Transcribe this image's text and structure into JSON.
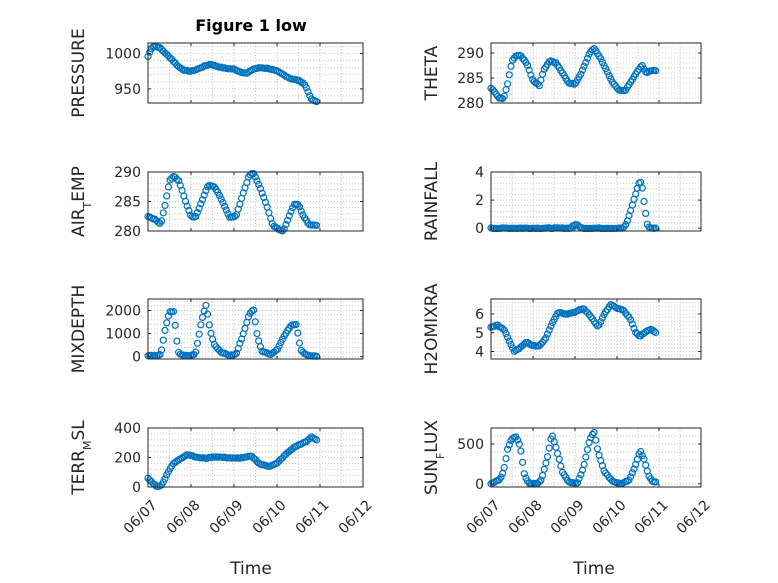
{
  "figure": {
    "title": "Figure 1 low",
    "xlabel": "Time",
    "x_ticks": [
      "06/07",
      "06/08",
      "06/09",
      "06/10",
      "06/11",
      "06/12"
    ]
  },
  "colors": {
    "marker": "#0072BD",
    "grid": "#bdbdbd",
    "axis": "#262626"
  },
  "chart_data": [
    {
      "type": "scatter",
      "title": "Figure 1 low",
      "ylabel_parts": [
        {
          "t": "PRESSURE"
        }
      ],
      "xlim": [
        "06/07",
        "06/12"
      ],
      "x_tick_labels": [],
      "ylim": [
        930,
        1015
      ],
      "yticks": [
        950,
        1000
      ],
      "grid": true,
      "marker": "o",
      "x_samples": [
        "06/07 00:00",
        "06/08 00:00",
        "06/09 00:00",
        "06/10 00:00",
        "06/10 22:00"
      ],
      "keypoints": [
        [
          0.0,
          996
        ],
        [
          0.03,
          1000
        ],
        [
          0.06,
          1006
        ],
        [
          0.12,
          1010
        ],
        [
          0.2,
          1010
        ],
        [
          0.28,
          1008
        ],
        [
          0.38,
          1002
        ],
        [
          0.55,
          992
        ],
        [
          0.7,
          982
        ],
        [
          0.85,
          976
        ],
        [
          1.0,
          975
        ],
        [
          1.15,
          978
        ],
        [
          1.3,
          982
        ],
        [
          1.45,
          985
        ],
        [
          1.6,
          982
        ],
        [
          1.8,
          979
        ],
        [
          2.0,
          978
        ],
        [
          2.15,
          974
        ],
        [
          2.3,
          972
        ],
        [
          2.45,
          978
        ],
        [
          2.6,
          980
        ],
        [
          2.8,
          979
        ],
        [
          3.0,
          975
        ],
        [
          3.15,
          970
        ],
        [
          3.3,
          965
        ],
        [
          3.5,
          962
        ],
        [
          3.62,
          958
        ],
        [
          3.7,
          950
        ],
        [
          3.76,
          940
        ],
        [
          3.82,
          934
        ],
        [
          3.92,
          932
        ]
      ]
    },
    {
      "type": "scatter",
      "ylabel_parts": [
        {
          "t": "THETA"
        }
      ],
      "xlim": [
        "06/07",
        "06/12"
      ],
      "x_tick_labels": [],
      "ylim": [
        280,
        292
      ],
      "yticks": [
        280,
        285,
        290
      ],
      "grid": true,
      "marker": "o",
      "keypoints": [
        [
          0.0,
          283.0
        ],
        [
          0.1,
          282.0
        ],
        [
          0.2,
          281.0
        ],
        [
          0.3,
          280.8
        ],
        [
          0.4,
          284.0
        ],
        [
          0.5,
          288.5
        ],
        [
          0.6,
          289.5
        ],
        [
          0.7,
          289.5
        ],
        [
          0.85,
          288.0
        ],
        [
          1.0,
          284.5
        ],
        [
          1.15,
          283.5
        ],
        [
          1.25,
          286.5
        ],
        [
          1.4,
          288.5
        ],
        [
          1.55,
          288.0
        ],
        [
          1.7,
          286.0
        ],
        [
          1.85,
          284.0
        ],
        [
          2.0,
          283.8
        ],
        [
          2.15,
          286.0
        ],
        [
          2.35,
          290.0
        ],
        [
          2.45,
          291.0
        ],
        [
          2.6,
          289.0
        ],
        [
          2.75,
          286.5
        ],
        [
          2.9,
          284.0
        ],
        [
          3.05,
          282.5
        ],
        [
          3.2,
          282.5
        ],
        [
          3.35,
          284.5
        ],
        [
          3.5,
          286.5
        ],
        [
          3.6,
          287.5
        ],
        [
          3.7,
          286.0
        ],
        [
          3.82,
          286.5
        ],
        [
          3.92,
          286.5
        ]
      ]
    },
    {
      "type": "scatter",
      "ylabel_parts": [
        {
          "t": "AIR"
        },
        {
          "t": "T",
          "sub": true
        },
        {
          "t": "EMP"
        }
      ],
      "xlim": [
        "06/07",
        "06/12"
      ],
      "x_tick_labels": [],
      "ylim": [
        280,
        290
      ],
      "yticks": [
        280,
        285,
        290
      ],
      "grid": true,
      "marker": "o",
      "keypoints": [
        [
          0.0,
          282.5
        ],
        [
          0.15,
          282.0
        ],
        [
          0.3,
          281.2
        ],
        [
          0.4,
          284.5
        ],
        [
          0.5,
          288.5
        ],
        [
          0.6,
          289.3
        ],
        [
          0.72,
          288.5
        ],
        [
          0.85,
          285.5
        ],
        [
          1.0,
          282.5
        ],
        [
          1.1,
          282.3
        ],
        [
          1.25,
          285.0
        ],
        [
          1.4,
          287.8
        ],
        [
          1.55,
          287.5
        ],
        [
          1.7,
          285.5
        ],
        [
          1.9,
          282.3
        ],
        [
          2.05,
          282.5
        ],
        [
          2.2,
          286.0
        ],
        [
          2.35,
          289.5
        ],
        [
          2.45,
          289.8
        ],
        [
          2.6,
          287.5
        ],
        [
          2.75,
          284.5
        ],
        [
          2.9,
          281.0
        ],
        [
          3.05,
          280.2
        ],
        [
          3.15,
          280.0
        ],
        [
          3.28,
          282.5
        ],
        [
          3.4,
          284.5
        ],
        [
          3.5,
          284.5
        ],
        [
          3.62,
          282.5
        ],
        [
          3.75,
          281.0
        ],
        [
          3.92,
          281.0
        ]
      ]
    },
    {
      "type": "scatter",
      "ylabel_parts": [
        {
          "t": "RAINFALL"
        }
      ],
      "xlim": [
        "06/07",
        "06/12"
      ],
      "x_tick_labels": [],
      "ylim": [
        -0.2,
        4
      ],
      "yticks": [
        0,
        2,
        4
      ],
      "grid": true,
      "marker": "o",
      "keypoints": [
        [
          0.0,
          0
        ],
        [
          1.9,
          0
        ],
        [
          1.95,
          0.2
        ],
        [
          2.05,
          0.25
        ],
        [
          2.15,
          0
        ],
        [
          3.15,
          0
        ],
        [
          3.22,
          0.3
        ],
        [
          3.3,
          1.0
        ],
        [
          3.38,
          1.8
        ],
        [
          3.45,
          2.5
        ],
        [
          3.52,
          3.2
        ],
        [
          3.58,
          3.3
        ],
        [
          3.62,
          2.5
        ],
        [
          3.66,
          1.5
        ],
        [
          3.72,
          0.3
        ],
        [
          3.78,
          0
        ],
        [
          3.92,
          0
        ]
      ]
    },
    {
      "type": "scatter",
      "ylabel_parts": [
        {
          "t": "MIXDEPTH"
        }
      ],
      "xlim": [
        "06/07",
        "06/12"
      ],
      "x_tick_labels": [],
      "ylim": [
        -100,
        2500
      ],
      "yticks": [
        0,
        1000,
        2000
      ],
      "grid": true,
      "marker": "o",
      "keypoints": [
        [
          0.0,
          50
        ],
        [
          0.2,
          60
        ],
        [
          0.3,
          100
        ],
        [
          0.4,
          1200
        ],
        [
          0.5,
          1950
        ],
        [
          0.6,
          1950
        ],
        [
          0.7,
          200
        ],
        [
          0.8,
          50
        ],
        [
          1.0,
          50
        ],
        [
          1.1,
          100
        ],
        [
          1.25,
          1600
        ],
        [
          1.35,
          2250
        ],
        [
          1.45,
          1100
        ],
        [
          1.55,
          500
        ],
        [
          1.7,
          200
        ],
        [
          1.9,
          50
        ],
        [
          2.05,
          100
        ],
        [
          2.2,
          900
        ],
        [
          2.35,
          1800
        ],
        [
          2.45,
          2100
        ],
        [
          2.55,
          800
        ],
        [
          2.65,
          250
        ],
        [
          2.85,
          100
        ],
        [
          3.0,
          300
        ],
        [
          3.2,
          1000
        ],
        [
          3.35,
          1400
        ],
        [
          3.45,
          1400
        ],
        [
          3.55,
          300
        ],
        [
          3.65,
          100
        ],
        [
          3.8,
          30
        ],
        [
          3.92,
          20
        ]
      ]
    },
    {
      "type": "scatter",
      "ylabel_parts": [
        {
          "t": "H2OMIXRA"
        }
      ],
      "xlim": [
        "06/07",
        "06/12"
      ],
      "x_tick_labels": [],
      "ylim": [
        3.6,
        6.8
      ],
      "yticks": [
        4,
        5,
        6
      ],
      "grid": true,
      "marker": "o",
      "keypoints": [
        [
          0.0,
          5.3
        ],
        [
          0.15,
          5.4
        ],
        [
          0.3,
          5.2
        ],
        [
          0.45,
          4.5
        ],
        [
          0.55,
          4.0
        ],
        [
          0.7,
          4.2
        ],
        [
          0.85,
          4.5
        ],
        [
          1.0,
          4.3
        ],
        [
          1.15,
          4.3
        ],
        [
          1.3,
          4.7
        ],
        [
          1.45,
          5.5
        ],
        [
          1.6,
          6.1
        ],
        [
          1.8,
          6.0
        ],
        [
          2.0,
          6.1
        ],
        [
          2.2,
          6.3
        ],
        [
          2.4,
          5.8
        ],
        [
          2.55,
          5.3
        ],
        [
          2.7,
          6.0
        ],
        [
          2.85,
          6.5
        ],
        [
          3.0,
          6.3
        ],
        [
          3.15,
          6.2
        ],
        [
          3.3,
          5.8
        ],
        [
          3.45,
          5.0
        ],
        [
          3.55,
          4.8
        ],
        [
          3.65,
          5.0
        ],
        [
          3.8,
          5.2
        ],
        [
          3.92,
          5.0
        ]
      ]
    },
    {
      "type": "scatter",
      "ylabel_parts": [
        {
          "t": "TERR"
        },
        {
          "t": "M",
          "sub": true
        },
        {
          "t": "SL"
        }
      ],
      "xlim": [
        "06/07",
        "06/12"
      ],
      "x_tick_labels": [
        "06/07",
        "06/08",
        "06/09",
        "06/10",
        "06/11",
        "06/12"
      ],
      "ylim": [
        0,
        400
      ],
      "yticks": [
        0,
        200,
        400
      ],
      "grid": true,
      "marker": "o",
      "keypoints": [
        [
          0.0,
          60
        ],
        [
          0.1,
          30
        ],
        [
          0.2,
          5
        ],
        [
          0.3,
          5
        ],
        [
          0.4,
          60
        ],
        [
          0.5,
          120
        ],
        [
          0.6,
          160
        ],
        [
          0.75,
          190
        ],
        [
          0.9,
          220
        ],
        [
          1.0,
          215
        ],
        [
          1.15,
          200
        ],
        [
          1.35,
          195
        ],
        [
          1.55,
          205
        ],
        [
          1.8,
          200
        ],
        [
          2.05,
          195
        ],
        [
          2.25,
          200
        ],
        [
          2.4,
          210
        ],
        [
          2.5,
          185
        ],
        [
          2.6,
          155
        ],
        [
          2.8,
          140
        ],
        [
          3.0,
          160
        ],
        [
          3.2,
          220
        ],
        [
          3.4,
          270
        ],
        [
          3.55,
          290
        ],
        [
          3.7,
          310
        ],
        [
          3.8,
          340
        ],
        [
          3.92,
          320
        ]
      ]
    },
    {
      "type": "scatter",
      "ylabel_parts": [
        {
          "t": "SUN"
        },
        {
          "t": "F",
          "sub": true
        },
        {
          "t": "LUX"
        }
      ],
      "xlim": [
        "06/07",
        "06/12"
      ],
      "x_tick_labels": [
        "06/07",
        "06/08",
        "06/09",
        "06/10",
        "06/11",
        "06/12"
      ],
      "ylim": [
        -40,
        700
      ],
      "yticks": [
        0,
        500
      ],
      "grid": true,
      "marker": "o",
      "keypoints": [
        [
          0.0,
          0
        ],
        [
          0.2,
          50
        ],
        [
          0.3,
          150
        ],
        [
          0.4,
          450
        ],
        [
          0.5,
          570
        ],
        [
          0.6,
          590
        ],
        [
          0.7,
          460
        ],
        [
          0.8,
          100
        ],
        [
          0.9,
          10
        ],
        [
          1.1,
          0
        ],
        [
          1.2,
          50
        ],
        [
          1.35,
          350
        ],
        [
          1.45,
          630
        ],
        [
          1.55,
          450
        ],
        [
          1.7,
          150
        ],
        [
          1.85,
          20
        ],
        [
          2.05,
          0
        ],
        [
          2.2,
          200
        ],
        [
          2.35,
          550
        ],
        [
          2.45,
          660
        ],
        [
          2.55,
          400
        ],
        [
          2.7,
          150
        ],
        [
          2.9,
          30
        ],
        [
          3.1,
          0
        ],
        [
          3.3,
          50
        ],
        [
          3.45,
          250
        ],
        [
          3.55,
          420
        ],
        [
          3.65,
          300
        ],
        [
          3.75,
          100
        ],
        [
          3.85,
          30
        ],
        [
          3.92,
          20
        ]
      ]
    }
  ]
}
